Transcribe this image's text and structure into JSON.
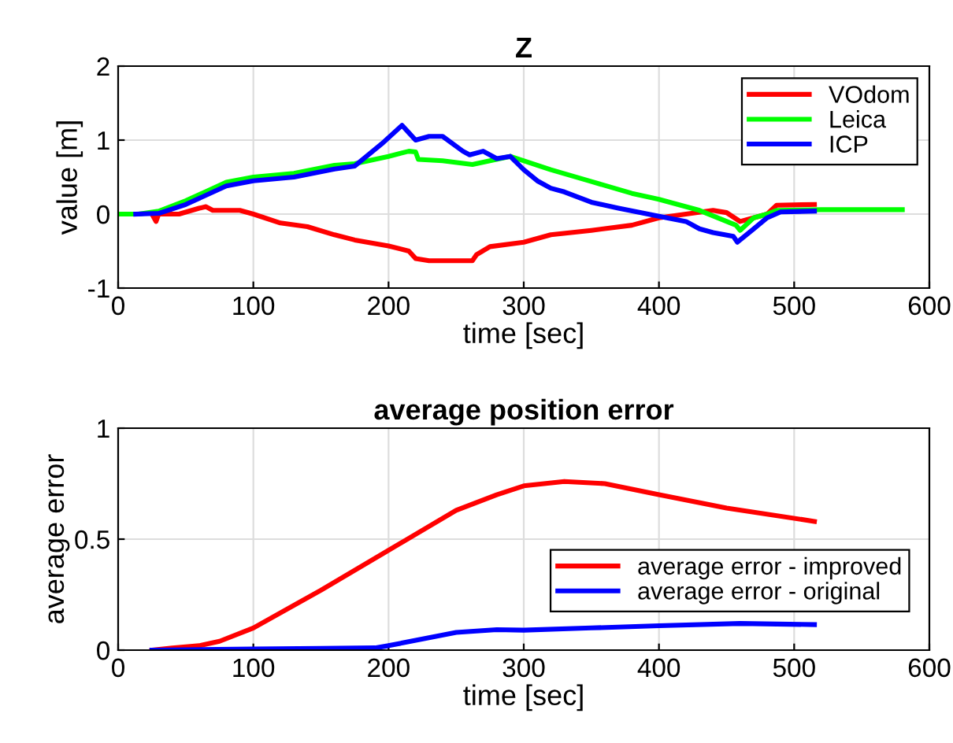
{
  "chart_data": [
    {
      "type": "line",
      "title": "Z",
      "xlabel": "time [sec]",
      "ylabel": "value [m]",
      "xlim": [
        0,
        600
      ],
      "xticks": [
        0,
        100,
        200,
        300,
        400,
        500,
        600
      ],
      "ylim": [
        -1,
        2
      ],
      "yticks": [
        -1,
        0,
        1,
        2
      ],
      "grid": true,
      "legend": "top right",
      "series": [
        {
          "name": "VOdom",
          "color": "#ff0000",
          "x": [
            25,
            28,
            30,
            45,
            60,
            65,
            70,
            90,
            100,
            120,
            140,
            160,
            175,
            200,
            215,
            220,
            230,
            262,
            265,
            275,
            300,
            320,
            350,
            380,
            400,
            420,
            440,
            450,
            460,
            470,
            480,
            487,
            515
          ],
          "values": [
            0,
            -0.1,
            0,
            0,
            0.08,
            0.1,
            0.05,
            0.05,
            0,
            -0.12,
            -0.17,
            -0.28,
            -0.35,
            -0.43,
            -0.5,
            -0.6,
            -0.63,
            -0.63,
            -0.55,
            -0.44,
            -0.38,
            -0.28,
            -0.22,
            -0.15,
            -0.05,
            0,
            0.05,
            0.02,
            -0.1,
            -0.05,
            0,
            0.12,
            0.13
          ]
        },
        {
          "name": "Leica",
          "color": "#00ff00",
          "x": [
            0,
            15,
            30,
            50,
            80,
            100,
            130,
            160,
            175,
            200,
            215,
            220,
            222,
            240,
            262,
            290,
            320,
            350,
            380,
            400,
            430,
            457,
            460,
            470,
            480,
            487,
            520,
            580
          ],
          "values": [
            0,
            0,
            0.04,
            0.18,
            0.43,
            0.5,
            0.55,
            0.66,
            0.68,
            0.78,
            0.85,
            0.84,
            0.74,
            0.72,
            0.67,
            0.78,
            0.6,
            0.44,
            0.28,
            0.2,
            0.05,
            -0.15,
            -0.22,
            -0.05,
            0,
            0.05,
            0.06,
            0.06
          ]
        },
        {
          "name": "ICP",
          "color": "#0000ff",
          "x": [
            13,
            30,
            50,
            80,
            100,
            130,
            160,
            175,
            195,
            210,
            215,
            220,
            230,
            240,
            255,
            260,
            270,
            280,
            290,
            300,
            310,
            320,
            330,
            350,
            370,
            400,
            420,
            430,
            440,
            455,
            458,
            470,
            480,
            490,
            515
          ],
          "values": [
            0,
            0.01,
            0.13,
            0.38,
            0.45,
            0.5,
            0.61,
            0.65,
            0.95,
            1.2,
            1.1,
            1,
            1.05,
            1.05,
            0.85,
            0.8,
            0.85,
            0.75,
            0.78,
            0.6,
            0.45,
            0.35,
            0.3,
            0.16,
            0.08,
            -0.03,
            -0.1,
            -0.2,
            -0.25,
            -0.3,
            -0.38,
            -0.2,
            -0.05,
            0.03,
            0.04
          ]
        }
      ]
    },
    {
      "type": "line",
      "title": "average position error",
      "xlabel": "time [sec]",
      "ylabel": "average error",
      "xlim": [
        0,
        600
      ],
      "xticks": [
        0,
        100,
        200,
        300,
        400,
        500,
        600
      ],
      "ylim": [
        0,
        1
      ],
      "yticks": [
        0,
        0.5,
        1
      ],
      "grid": true,
      "legend": "bottom right",
      "series": [
        {
          "name": "average error - improved",
          "color": "#ff0000",
          "x": [
            25,
            40,
            60,
            75,
            100,
            150,
            200,
            250,
            280,
            300,
            330,
            360,
            400,
            450,
            515
          ],
          "values": [
            0,
            0.01,
            0.02,
            0.04,
            0.1,
            0.27,
            0.45,
            0.63,
            0.7,
            0.74,
            0.76,
            0.75,
            0.7,
            0.64,
            0.58
          ]
        },
        {
          "name": "average error - original",
          "color": "#0000ff",
          "x": [
            25,
            100,
            150,
            190,
            200,
            250,
            280,
            300,
            350,
            400,
            460,
            515
          ],
          "values": [
            0,
            0.005,
            0.008,
            0.01,
            0.02,
            0.08,
            0.092,
            0.09,
            0.1,
            0.11,
            0.12,
            0.115
          ]
        }
      ]
    }
  ]
}
